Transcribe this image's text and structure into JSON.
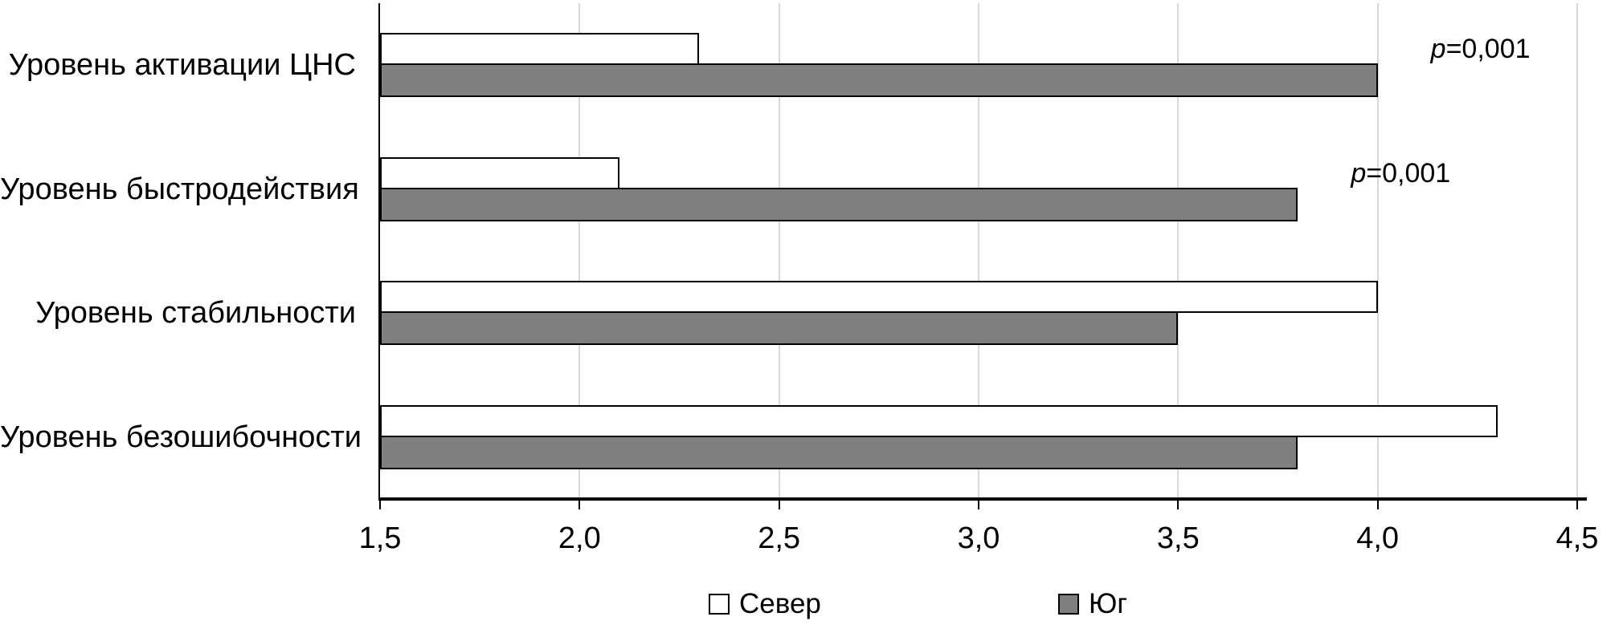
{
  "chart_data": {
    "type": "bar",
    "orientation": "horizontal",
    "title": "",
    "categories": [
      "Уровень активации ЦНС",
      "Уровень быстродействия",
      "Уровень стабильности",
      "Уровень безошибочности"
    ],
    "series": [
      {
        "name": "Север",
        "fill": "#ffffff",
        "values": [
          2.3,
          2.1,
          4.0,
          4.3
        ]
      },
      {
        "name": "Юг",
        "fill": "#7f7f7f",
        "values": [
          4.0,
          3.8,
          3.5,
          3.8
        ]
      }
    ],
    "xaxis": {
      "min": 1.5,
      "max": 4.5,
      "step": 0.5,
      "ticks": [
        1.5,
        2.0,
        2.5,
        3.0,
        3.5,
        4.0,
        4.5
      ],
      "tick_labels": [
        "1,5",
        "2,0",
        "2,5",
        "3,0",
        "3,5",
        "4,0",
        "4,5"
      ]
    },
    "annotations": [
      {
        "row": 0,
        "prefix": "p",
        "text": "=0,001"
      },
      {
        "row": 1,
        "prefix": "p",
        "text": "=0,001"
      }
    ],
    "legend": {
      "position": "bottom"
    },
    "colors": {
      "background": "#ffffff",
      "gridline": "#d9d9d9",
      "axis": "#000000",
      "bar_border": "#000000",
      "north_fill": "#ffffff",
      "south_fill": "#7f7f7f"
    },
    "grid": "vertical-only"
  }
}
